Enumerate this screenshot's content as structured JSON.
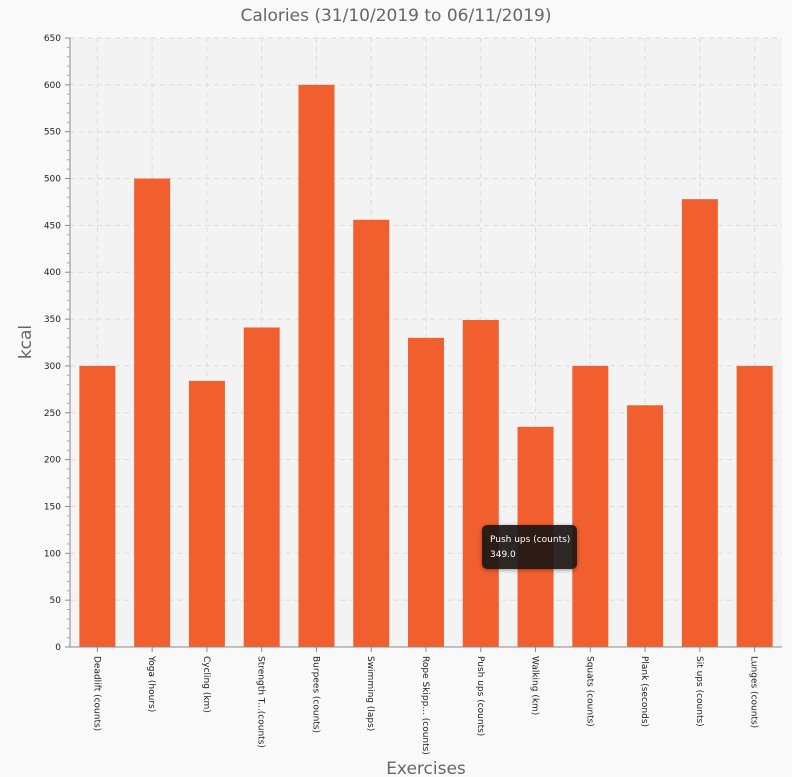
{
  "chart_data": {
    "type": "bar",
    "title": "Calories (31/10/2019 to 06/11/2019)",
    "xlabel": "Exercises",
    "ylabel": "kcal",
    "ylim": [
      0,
      650
    ],
    "yticks": [
      0,
      50,
      100,
      150,
      200,
      250,
      300,
      350,
      400,
      450,
      500,
      550,
      600,
      650
    ],
    "grid": true,
    "legend": "none",
    "bar_color": "#f15f2e",
    "categories": [
      "Deadlift (counts)",
      "Yoga (hours)",
      "Cycling (km)",
      "Strength T...(counts)",
      "Burpees (counts)",
      "Swimming (laps)",
      "Rope Skipp... (counts)",
      "Push ups (counts)",
      "Walking (km)",
      "Squats (counts)",
      "Plank (seconds)",
      "Sit ups (counts)",
      "Lunges (counts)"
    ],
    "values": [
      300,
      500,
      284,
      341,
      600,
      456,
      330,
      349,
      235,
      300,
      258,
      478,
      300
    ]
  },
  "tooltip": {
    "label": "Push ups (counts)",
    "value": "349.0"
  }
}
